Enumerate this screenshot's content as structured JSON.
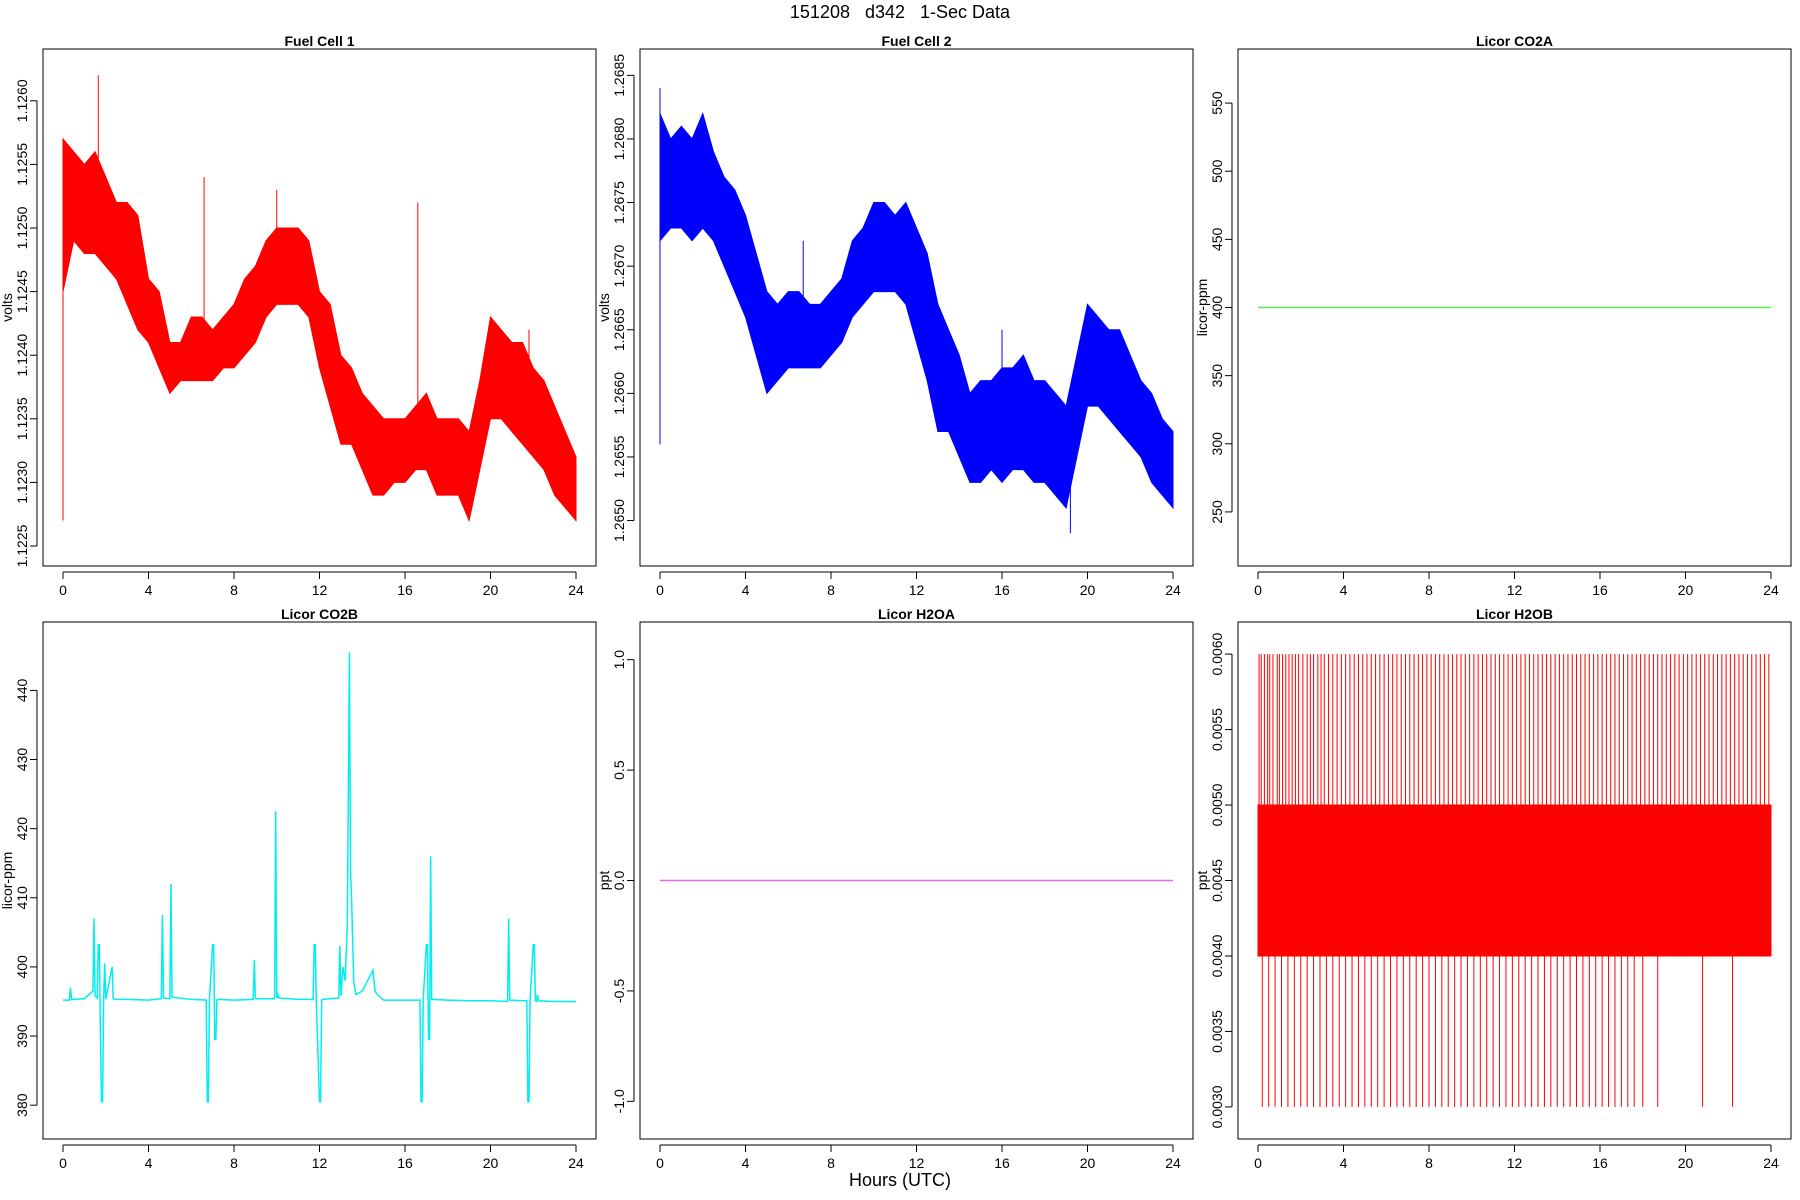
{
  "title": "151208   d342   1-Sec Data",
  "xlabel": "Hours (UTC)",
  "chart_data": [
    {
      "type": "line",
      "title": "Fuel Cell 1",
      "ylabel": "volts",
      "xlabel": "Hours (UTC)",
      "xlim": [
        0,
        24
      ],
      "ylim": [
        1.1225,
        1.12625
      ],
      "xticks": [
        0,
        4,
        8,
        12,
        16,
        20,
        24
      ],
      "yticks": [
        1.1225,
        1.123,
        1.1235,
        1.124,
        1.1245,
        1.125,
        1.1255,
        1.126
      ],
      "ytick_labels": [
        "1.1225",
        "1.1230",
        "1.1235",
        "1.1240",
        "1.1245",
        "1.1250",
        "1.1255",
        "1.1260"
      ],
      "color": "#ff0000",
      "series": [
        {
          "name": "",
          "style": "band",
          "x": [
            0,
            0.5,
            1,
            1.5,
            2,
            2.5,
            3,
            3.5,
            4,
            4.5,
            5,
            5.5,
            6,
            6.5,
            7,
            7.5,
            8,
            8.5,
            9,
            9.5,
            10,
            10.5,
            11,
            11.5,
            12,
            12.5,
            13,
            13.5,
            14,
            14.5,
            15,
            15.5,
            16,
            16.5,
            17,
            17.5,
            18,
            18.5,
            19,
            19.5,
            20,
            20.5,
            21,
            21.5,
            22,
            22.5,
            23,
            23.5,
            24
          ],
          "upper": [
            1.1257,
            1.1256,
            1.1255,
            1.1256,
            1.1254,
            1.1252,
            1.1252,
            1.1251,
            1.1246,
            1.1245,
            1.1241,
            1.1241,
            1.1243,
            1.1243,
            1.1242,
            1.1243,
            1.1244,
            1.1246,
            1.1247,
            1.1249,
            1.125,
            1.125,
            1.125,
            1.1249,
            1.1245,
            1.1244,
            1.124,
            1.1239,
            1.1237,
            1.1236,
            1.1235,
            1.1235,
            1.1235,
            1.1236,
            1.1237,
            1.1235,
            1.1235,
            1.1235,
            1.1234,
            1.1238,
            1.1243,
            1.1242,
            1.1241,
            1.1241,
            1.1239,
            1.1238,
            1.1236,
            1.1234,
            1.1232
          ],
          "lower": [
            1.1245,
            1.1249,
            1.1248,
            1.1248,
            1.1247,
            1.1246,
            1.1244,
            1.1242,
            1.1241,
            1.1239,
            1.1237,
            1.1238,
            1.1238,
            1.1238,
            1.1238,
            1.1239,
            1.1239,
            1.124,
            1.1241,
            1.1243,
            1.1244,
            1.1244,
            1.1244,
            1.1243,
            1.1239,
            1.1236,
            1.1233,
            1.1233,
            1.1231,
            1.1229,
            1.1229,
            1.123,
            1.123,
            1.1231,
            1.1231,
            1.1229,
            1.1229,
            1.1229,
            1.1227,
            1.1231,
            1.1235,
            1.1235,
            1.1234,
            1.1233,
            1.1232,
            1.1231,
            1.1229,
            1.1228,
            1.1227
          ]
        }
      ],
      "spikes": [
        [
          0,
          1.1227,
          1.1257
        ],
        [
          1.65,
          1.1254,
          1.1262
        ],
        [
          6.6,
          1.124,
          1.1254
        ],
        [
          10,
          1.1245,
          1.1253
        ],
        [
          16.6,
          1.1232,
          1.1252
        ],
        [
          21.8,
          1.1237,
          1.1242
        ]
      ]
    },
    {
      "type": "line",
      "title": "Fuel Cell 2",
      "ylabel": "volts",
      "xlabel": "Hours (UTC)",
      "xlim": [
        0,
        24
      ],
      "ylim": [
        1.2648,
        1.26855
      ],
      "xticks": [
        0,
        4,
        8,
        12,
        16,
        20,
        24
      ],
      "yticks": [
        1.265,
        1.2655,
        1.266,
        1.2665,
        1.267,
        1.2675,
        1.268,
        1.2685
      ],
      "ytick_labels": [
        "1.2650",
        "1.2655",
        "1.2660",
        "1.2665",
        "1.2670",
        "1.2675",
        "1.2680",
        "1.2685"
      ],
      "color": "#0000ff",
      "series": [
        {
          "name": "",
          "style": "band",
          "x": [
            0,
            0.5,
            1,
            1.5,
            2,
            2.5,
            3,
            3.5,
            4,
            4.5,
            5,
            5.5,
            6,
            6.5,
            7,
            7.5,
            8,
            8.5,
            9,
            9.5,
            10,
            10.5,
            11,
            11.5,
            12,
            12.5,
            13,
            13.5,
            14,
            14.5,
            15,
            15.5,
            16,
            16.5,
            17,
            17.5,
            18,
            18.5,
            19,
            19.5,
            20,
            20.5,
            21,
            21.5,
            22,
            22.5,
            23,
            23.5,
            24
          ],
          "upper": [
            1.2682,
            1.268,
            1.2681,
            1.268,
            1.2682,
            1.2679,
            1.2677,
            1.2676,
            1.2674,
            1.2671,
            1.2668,
            1.2667,
            1.2668,
            1.2668,
            1.2667,
            1.2667,
            1.2668,
            1.2669,
            1.2672,
            1.2673,
            1.2675,
            1.2675,
            1.2674,
            1.2675,
            1.2673,
            1.2671,
            1.2667,
            1.2665,
            1.2663,
            1.266,
            1.2661,
            1.2661,
            1.2662,
            1.2662,
            1.2663,
            1.2661,
            1.2661,
            1.266,
            1.2659,
            1.2663,
            1.2667,
            1.2666,
            1.2665,
            1.2665,
            1.2663,
            1.2661,
            1.266,
            1.2658,
            1.2657
          ],
          "lower": [
            1.2672,
            1.2673,
            1.2673,
            1.2672,
            1.2673,
            1.2672,
            1.267,
            1.2668,
            1.2666,
            1.2663,
            1.266,
            1.2661,
            1.2662,
            1.2662,
            1.2662,
            1.2662,
            1.2663,
            1.2664,
            1.2666,
            1.2667,
            1.2668,
            1.2668,
            1.2668,
            1.2667,
            1.2664,
            1.2661,
            1.2657,
            1.2657,
            1.2655,
            1.2653,
            1.2653,
            1.2654,
            1.2653,
            1.2654,
            1.2654,
            1.2653,
            1.2653,
            1.2652,
            1.2651,
            1.2655,
            1.2659,
            1.2659,
            1.2658,
            1.2657,
            1.2656,
            1.2655,
            1.2653,
            1.2652,
            1.2651
          ]
        }
      ],
      "spikes": [
        [
          0,
          1.2656,
          1.2684
        ],
        [
          6.7,
          1.2662,
          1.2672
        ],
        [
          16,
          1.2656,
          1.2665
        ],
        [
          19.2,
          1.2649,
          1.2659
        ]
      ]
    },
    {
      "type": "line",
      "title": "Licor CO2A",
      "ylabel": "licor-ppm",
      "xlabel": "Hours (UTC)",
      "xlim": [
        0,
        24
      ],
      "ylim": [
        225,
        575
      ],
      "xticks": [
        0,
        4,
        8,
        12,
        16,
        20,
        24
      ],
      "yticks": [
        250,
        300,
        350,
        400,
        450,
        500,
        550
      ],
      "ytick_labels": [
        "250",
        "300",
        "350",
        "400",
        "450",
        "500",
        "550"
      ],
      "color": "#55ee55",
      "series": [
        {
          "name": "",
          "x": [
            0,
            24
          ],
          "y": [
            400,
            400
          ]
        }
      ]
    },
    {
      "type": "line",
      "title": "Licor CO2B",
      "ylabel": "licor-ppm",
      "xlabel": "Hours (UTC)",
      "xlim": [
        0,
        24
      ],
      "ylim": [
        378,
        447
      ],
      "xticks": [
        0,
        4,
        8,
        12,
        16,
        20,
        24
      ],
      "yticks": [
        380,
        390,
        400,
        410,
        420,
        430,
        440
      ],
      "ytick_labels": [
        "380",
        "390",
        "400",
        "410",
        "420",
        "430",
        "440"
      ],
      "color": "#00eeee",
      "series": [
        {
          "name": "",
          "x": [
            0,
            0.3,
            0.35,
            0.4,
            1,
            1.4,
            1.45,
            1.5,
            1.6,
            1.65,
            1.7,
            1.75,
            1.8,
            1.85,
            1.9,
            1.95,
            2.0,
            2.3,
            2.35,
            2.4,
            3,
            4,
            4.6,
            4.65,
            4.7,
            5.0,
            5.05,
            5.1,
            6,
            6.7,
            6.75,
            6.8,
            6.85,
            7.0,
            7.05,
            7.1,
            7.15,
            7.2,
            7.25,
            8,
            8.9,
            8.95,
            9.0,
            9.9,
            9.95,
            10.0,
            10.05,
            10.1,
            11,
            11.7,
            11.75,
            11.8,
            11.85,
            12.0,
            12.05,
            12.1,
            12.15,
            12.9,
            12.95,
            13.0,
            13.1,
            13.2,
            13.3,
            13.35,
            13.4,
            13.45,
            13.5,
            13.55,
            13.6,
            13.7,
            14,
            14.5,
            14.6,
            14.7,
            15,
            16,
            16.7,
            16.75,
            16.8,
            16.85,
            17.0,
            17.05,
            17.1,
            17.15,
            17.2,
            17.25,
            18,
            19,
            20,
            20.8,
            20.85,
            20.9,
            21.5,
            21.7,
            21.75,
            21.8,
            21.85,
            22.0,
            22.05,
            22.1,
            22.15,
            22.2,
            22.25,
            23,
            24
          ],
          "y": [
            395.2,
            395.2,
            397,
            395.3,
            395.4,
            396.5,
            407,
            395.8,
            395.5,
            403.2,
            403.2,
            390.5,
            380.5,
            380.5,
            395,
            400.5,
            395.3,
            400,
            395.4,
            395.3,
            395.3,
            395.2,
            395.4,
            407.5,
            395.5,
            395.4,
            412,
            395.6,
            395.3,
            395.2,
            380.5,
            380.5,
            395.2,
            403.2,
            403.2,
            389.5,
            389.5,
            395.2,
            395.3,
            395.2,
            395.3,
            401,
            395.4,
            395.4,
            422.5,
            395.5,
            396,
            395.5,
            395.3,
            395.3,
            403.2,
            403.2,
            395,
            380.5,
            380.5,
            395.2,
            395.3,
            395.5,
            403,
            395.8,
            400,
            398,
            406,
            425.5,
            445.5,
            414,
            410,
            404,
            398,
            396,
            396.5,
            399.5,
            396.5,
            396,
            395.2,
            395.2,
            395.2,
            380.5,
            380.5,
            395.2,
            403.2,
            403.2,
            389.5,
            389.5,
            416,
            395.3,
            395.2,
            395.1,
            395.1,
            395,
            407,
            395.2,
            395.1,
            395.1,
            380.5,
            380.5,
            395.1,
            403.2,
            403.2,
            395.1,
            395,
            396,
            395.1,
            395,
            395
          ]
        }
      ]
    },
    {
      "type": "line",
      "title": "Licor H2OA",
      "ylabel": "ppt",
      "xlabel": "Hours (UTC)",
      "xlim": [
        0,
        24
      ],
      "ylim": [
        -1.08,
        1.08
      ],
      "xticks": [
        0,
        4,
        8,
        12,
        16,
        20,
        24
      ],
      "yticks": [
        -1.0,
        -0.5,
        0.0,
        0.5,
        1.0
      ],
      "ytick_labels": [
        "-1.0",
        "-0.5",
        "0.0",
        "0.5",
        "1.0"
      ],
      "color": "#ee66ee",
      "series": [
        {
          "name": "",
          "x": [
            0,
            24
          ],
          "y": [
            0,
            0
          ]
        }
      ]
    },
    {
      "type": "line",
      "title": "Licor H2OB",
      "ylabel": "ppt",
      "xlabel": "Hours (UTC)",
      "xlim": [
        0,
        24
      ],
      "ylim": [
        0.00292,
        0.00608
      ],
      "xticks": [
        0,
        4,
        8,
        12,
        16,
        20,
        24
      ],
      "yticks": [
        0.003,
        0.0035,
        0.004,
        0.0045,
        0.005,
        0.0055,
        0.006
      ],
      "ytick_labels": [
        "0.0030",
        "0.0035",
        "0.0040",
        "0.0045",
        "0.0050",
        "0.0055",
        "0.0060"
      ],
      "color": "#ff0000",
      "series": [
        {
          "name": "",
          "style": "band",
          "x": [
            0,
            24
          ],
          "upper": [
            0.005,
            0.005
          ],
          "lower": [
            0.004,
            0.004
          ]
        }
      ],
      "spike_levels": {
        "high": 0.006,
        "low": 0.003
      },
      "high_spikes": [
        0.05,
        0.15,
        0.3,
        0.45,
        0.55,
        0.7,
        0.9,
        1.0,
        1.15,
        1.3,
        1.45,
        1.6,
        1.75,
        1.9,
        2.1,
        2.3,
        2.45,
        2.6,
        2.8,
        2.95,
        3.1,
        3.3,
        3.5,
        3.7,
        3.9,
        4.1,
        4.3,
        4.5,
        4.7,
        4.9,
        5.1,
        5.3,
        5.5,
        5.7,
        5.9,
        6.1,
        6.3,
        6.5,
        6.7,
        6.9,
        7.1,
        7.3,
        7.5,
        7.7,
        7.9,
        8.1,
        8.3,
        8.5,
        8.7,
        8.9,
        9.1,
        9.3,
        9.5,
        9.7,
        9.9,
        10.1,
        10.3,
        10.5,
        10.7,
        10.9,
        11.1,
        11.3,
        11.5,
        11.7,
        11.9,
        12.1,
        12.3,
        12.5,
        12.7,
        12.9,
        13.1,
        13.3,
        13.5,
        13.7,
        13.9,
        14.1,
        14.3,
        14.5,
        14.7,
        14.9,
        15.1,
        15.3,
        15.5,
        15.7,
        15.9,
        16.1,
        16.3,
        16.5,
        16.7,
        16.9,
        17.1,
        17.3,
        17.5,
        17.7,
        17.9,
        18.1,
        18.3,
        18.5,
        18.7,
        18.9,
        19.1,
        19.3,
        19.5,
        19.7,
        19.9,
        20.1,
        20.3,
        20.5,
        20.7,
        20.9,
        21.1,
        21.3,
        21.5,
        21.7,
        21.9,
        22.1,
        22.3,
        22.5,
        22.7,
        22.9,
        23.1,
        23.3,
        23.5,
        23.7,
        23.9
      ],
      "low_spikes": [
        0.2,
        0.5,
        0.8,
        1.1,
        1.4,
        1.7,
        2.0,
        2.3,
        2.6,
        2.9,
        3.2,
        3.5,
        3.8,
        4.1,
        4.4,
        4.7,
        5.0,
        5.3,
        5.6,
        5.9,
        6.2,
        6.5,
        6.8,
        7.1,
        7.4,
        7.7,
        8.0,
        8.3,
        8.6,
        8.9,
        9.2,
        9.5,
        9.8,
        10.1,
        10.4,
        10.7,
        11.0,
        11.3,
        11.6,
        11.9,
        12.2,
        12.5,
        12.8,
        13.1,
        13.4,
        13.7,
        14.0,
        14.3,
        14.6,
        14.9,
        15.2,
        15.5,
        15.8,
        16.1,
        16.4,
        16.7,
        17.0,
        17.3,
        17.6,
        18.0,
        18.7,
        20.8,
        22.2
      ]
    }
  ]
}
